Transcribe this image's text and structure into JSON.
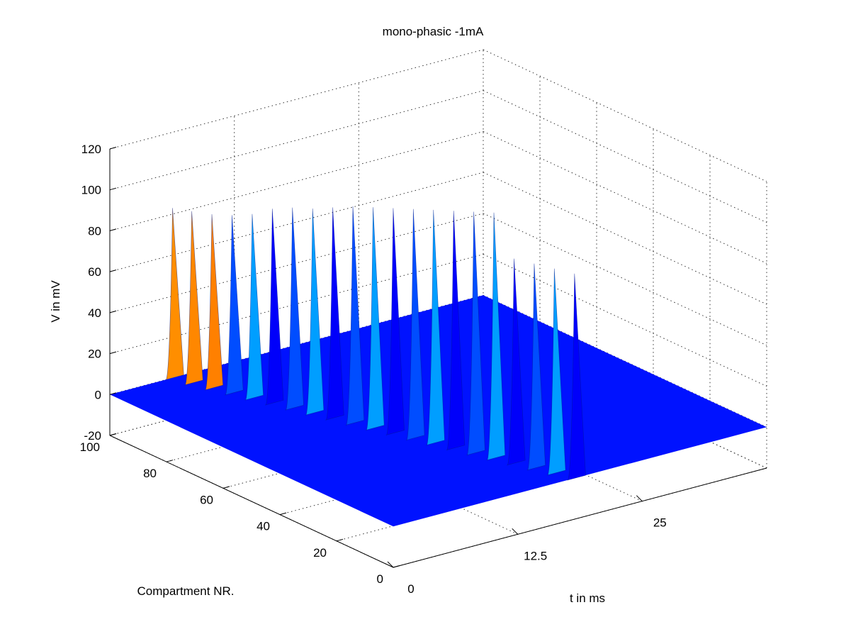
{
  "chart_data": {
    "type": "surface",
    "title": "mono-phasic -1mA",
    "xlabel": "t in ms",
    "ylabel": "Compartment NR.",
    "zlabel": "V in mV",
    "xlim": [
      0,
      37.5
    ],
    "ylim": [
      0,
      100
    ],
    "zlim": [
      -20,
      120
    ],
    "x_ticks": [
      0,
      12.5,
      25
    ],
    "y_ticks": [
      0,
      20,
      40,
      60,
      80,
      100
    ],
    "z_ticks": [
      -20,
      0,
      20,
      40,
      60,
      80,
      100,
      120
    ],
    "x_tick_labels": [
      "0",
      "12.5",
      "25"
    ],
    "y_tick_labels": [
      "0",
      "20",
      "40",
      "60",
      "80",
      "100"
    ],
    "z_tick_labels": [
      "-20",
      "0",
      "20",
      "40",
      "60",
      "80",
      "100",
      "120"
    ],
    "grid": true,
    "colormap": "jet",
    "baseline_mV": 0,
    "spikes": [
      {
        "compartment": 100,
        "t_ms": 6.3,
        "peak_mV": 83
      },
      {
        "compartment": 95,
        "t_ms": 6.8,
        "peak_mV": 84
      },
      {
        "compartment": 90,
        "t_ms": 7.4,
        "peak_mV": 85
      },
      {
        "compartment": 85,
        "t_ms": 8.0,
        "peak_mV": 87
      },
      {
        "compartment": 80,
        "t_ms": 8.6,
        "peak_mV": 90
      },
      {
        "compartment": 75,
        "t_ms": 9.2,
        "peak_mV": 95
      },
      {
        "compartment": 70,
        "t_ms": 9.8,
        "peak_mV": 98
      },
      {
        "compartment": 65,
        "t_ms": 10.4,
        "peak_mV": 100
      },
      {
        "compartment": 60,
        "t_ms": 11.0,
        "peak_mV": 103
      },
      {
        "compartment": 55,
        "t_ms": 11.6,
        "peak_mV": 106
      },
      {
        "compartment": 50,
        "t_ms": 12.2,
        "peak_mV": 108
      },
      {
        "compartment": 45,
        "t_ms": 12.8,
        "peak_mV": 110
      },
      {
        "compartment": 40,
        "t_ms": 13.4,
        "peak_mV": 112
      },
      {
        "compartment": 35,
        "t_ms": 14.0,
        "peak_mV": 114
      },
      {
        "compartment": 30,
        "t_ms": 14.6,
        "peak_mV": 116
      },
      {
        "compartment": 25,
        "t_ms": 15.2,
        "peak_mV": 118
      },
      {
        "compartment": 20,
        "t_ms": 15.8,
        "peak_mV": 120
      },
      {
        "compartment": 15,
        "t_ms": 16.4,
        "peak_mV": 100
      },
      {
        "compartment": 10,
        "t_ms": 17.0,
        "peak_mV": 100
      },
      {
        "compartment": 5,
        "t_ms": 17.6,
        "peak_mV": 100
      },
      {
        "compartment": 0,
        "t_ms": 18.2,
        "peak_mV": 100
      }
    ]
  }
}
